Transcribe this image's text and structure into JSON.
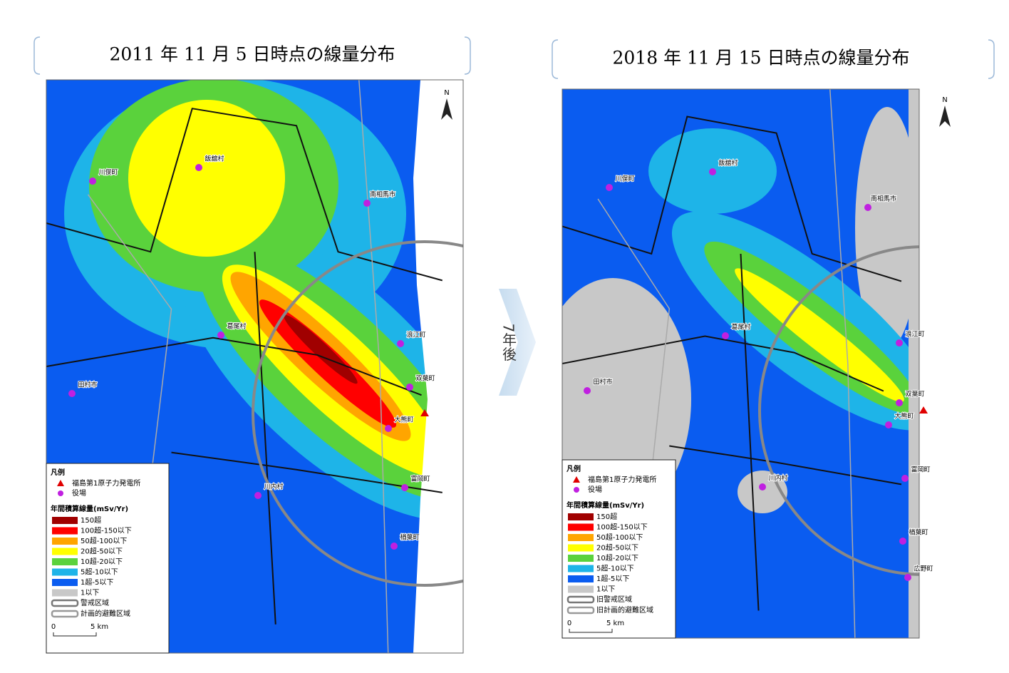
{
  "arrow_label": "7年後",
  "maps": [
    {
      "title": "2011 年 11 月 5 日時点の線量分布",
      "north": "N",
      "towns": [
        "飯舘村",
        "川俣町",
        "南相馬市",
        "葛尾村",
        "浪江町",
        "田村市",
        "双葉町",
        "大熊町",
        "川内村",
        "富岡町",
        "楢葉町"
      ],
      "legend": {
        "title": "凡例",
        "markers": [
          "福島第1原子力発電所",
          "役場"
        ],
        "dose_title": "年間積算線量(mSv/Yr)",
        "classes": [
          {
            "label": "150超",
            "color": "#a00000"
          },
          {
            "label": "100超-150以下",
            "color": "#ff0000"
          },
          {
            "label": "50超-100以下",
            "color": "#ffa500"
          },
          {
            "label": "20超-50以下",
            "color": "#ffff00"
          },
          {
            "label": "10超-20以下",
            "color": "#5ad23c"
          },
          {
            "label": "5超-10以下",
            "color": "#1eb4e8"
          },
          {
            "label": "1超-5以下",
            "color": "#0a5cf0"
          },
          {
            "label": "1以下",
            "color": "#c8c8c8"
          }
        ],
        "zones": [
          "警戒区域",
          "計画的避難区域"
        ],
        "scale": [
          "0",
          "5 km"
        ]
      }
    },
    {
      "title": "2018 年 11 月 15 日時点の線量分布",
      "north": "N",
      "towns": [
        "飯舘村",
        "川俣町",
        "南相馬市",
        "葛尾村",
        "浪江町",
        "田村市",
        "双葉町",
        "大熊町",
        "川内村",
        "富岡町",
        "楢葉町",
        "広野町"
      ],
      "legend": {
        "title": "凡例",
        "markers": [
          "福島第1原子力発電所",
          "役場"
        ],
        "dose_title": "年間積算線量(mSv/Yr)",
        "classes": [
          {
            "label": "150超",
            "color": "#a00000"
          },
          {
            "label": "100超-150以下",
            "color": "#ff0000"
          },
          {
            "label": "50超-100以下",
            "color": "#ffa500"
          },
          {
            "label": "20超-50以下",
            "color": "#ffff00"
          },
          {
            "label": "10超-20以下",
            "color": "#5ad23c"
          },
          {
            "label": "5超-10以下",
            "color": "#1eb4e8"
          },
          {
            "label": "1超-5以下",
            "color": "#0a5cf0"
          },
          {
            "label": "1以下",
            "color": "#c8c8c8"
          }
        ],
        "zones": [
          "旧警戒区域",
          "旧計画的避難区域"
        ],
        "scale": [
          "0",
          "5 km"
        ]
      }
    }
  ]
}
